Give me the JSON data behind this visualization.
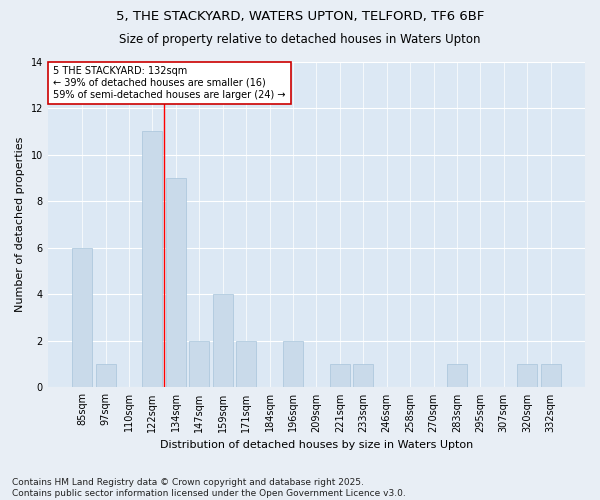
{
  "title1": "5, THE STACKYARD, WATERS UPTON, TELFORD, TF6 6BF",
  "title2": "Size of property relative to detached houses in Waters Upton",
  "xlabel": "Distribution of detached houses by size in Waters Upton",
  "ylabel": "Number of detached properties",
  "categories": [
    "85sqm",
    "97sqm",
    "110sqm",
    "122sqm",
    "134sqm",
    "147sqm",
    "159sqm",
    "171sqm",
    "184sqm",
    "196sqm",
    "209sqm",
    "221sqm",
    "233sqm",
    "246sqm",
    "258sqm",
    "270sqm",
    "283sqm",
    "295sqm",
    "307sqm",
    "320sqm",
    "332sqm"
  ],
  "values": [
    6,
    1,
    0,
    11,
    9,
    2,
    4,
    2,
    0,
    2,
    0,
    1,
    1,
    0,
    0,
    0,
    1,
    0,
    0,
    1,
    1
  ],
  "bar_color": "#c9daea",
  "bar_edgecolor": "#a8c4db",
  "red_line_x": 3.5,
  "annotation_text": "5 THE STACKYARD: 132sqm\n← 39% of detached houses are smaller (16)\n59% of semi-detached houses are larger (24) →",
  "annotation_box_color": "#ffffff",
  "annotation_box_edgecolor": "#cc0000",
  "ylim": [
    0,
    14
  ],
  "yticks": [
    0,
    2,
    4,
    6,
    8,
    10,
    12,
    14
  ],
  "footer": "Contains HM Land Registry data © Crown copyright and database right 2025.\nContains public sector information licensed under the Open Government Licence v3.0.",
  "bg_color": "#e8eef5",
  "plot_bg_color": "#dce8f4",
  "grid_color": "#ffffff",
  "title_fontsize": 9.5,
  "subtitle_fontsize": 8.5,
  "axis_label_fontsize": 8,
  "tick_fontsize": 7,
  "annotation_fontsize": 7,
  "footer_fontsize": 6.5
}
